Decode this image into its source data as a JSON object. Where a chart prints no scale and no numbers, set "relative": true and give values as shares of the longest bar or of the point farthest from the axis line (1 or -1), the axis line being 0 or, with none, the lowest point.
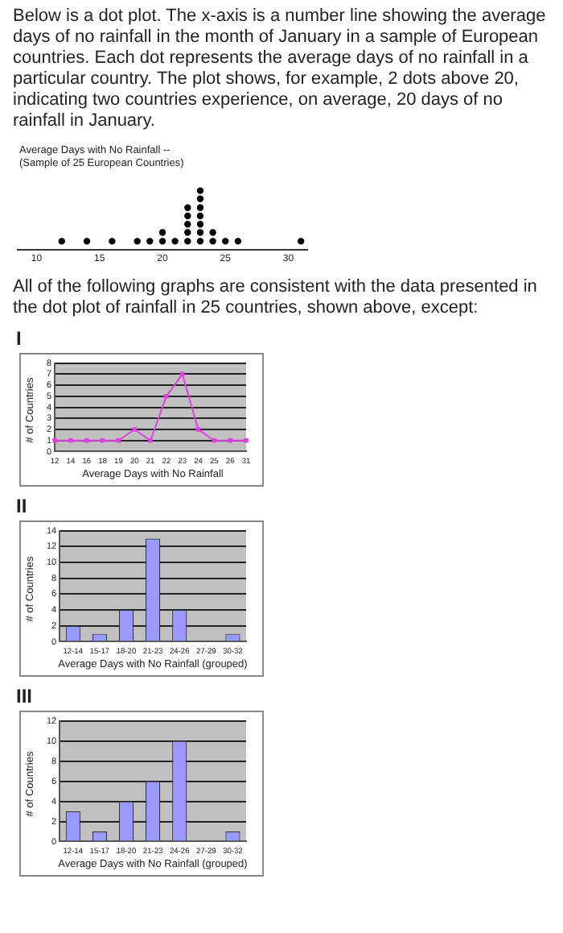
{
  "chart_data": [
    {
      "type": "scatter",
      "title": "Average Days with No Rainfall --",
      "subtitle": "(Sample of 25 European Countries)",
      "annotations": [
        "Below is a dot plot. The x-axis is a number line showing the average days of no rainfall in the month of January in a sample of European countries. Each dot represents the average days of no rainfall in a particular country. The plot shows, for example, 2 dots above 20, indicating two countries experience, on average, 20 days of no rainfall in January.",
        "All of the following graphs are consistent with the data presented in the dot plot of rainfall in 25 countries, shown above, except:"
      ],
      "x": [
        12,
        14,
        16,
        18,
        19,
        20,
        20,
        21,
        22,
        22,
        22,
        22,
        22,
        23,
        23,
        23,
        23,
        23,
        23,
        23,
        24,
        24,
        25,
        26,
        31
      ],
      "values": [
        0.14,
        0.14,
        0.14,
        0.14,
        0.14,
        0.14,
        0.29,
        0.14,
        0.14,
        0.29,
        0.43,
        0.57,
        0.71,
        0.14,
        0.29,
        0.43,
        0.57,
        0.71,
        0.86,
        1,
        0.14,
        0.29,
        0.14,
        0.14,
        0.14
      ],
      "relative": true,
      "color": "#000000",
      "marker": "circle",
      "xlim": [
        8.5,
        31.5
      ],
      "xticks": [
        10,
        15,
        20,
        25,
        30
      ],
      "legend": false
    },
    {
      "type": "line",
      "title": "I",
      "xlabel": "Average Days with No Rainfall",
      "ylabel": "# of Countries",
      "categories": [
        "12",
        "14",
        "16",
        "18",
        "19",
        "20",
        "21",
        "22",
        "23",
        "24",
        "25",
        "26",
        "31"
      ],
      "values": [
        1,
        1,
        1,
        1,
        1,
        2,
        1,
        5,
        7,
        2,
        1,
        1,
        1
      ],
      "color": "#e040e0",
      "marker": "square",
      "ylim": [
        0,
        8
      ],
      "yticks": [
        0,
        1,
        2,
        3,
        4,
        5,
        6,
        7,
        8
      ],
      "grid": "y",
      "legend": false
    },
    {
      "type": "bar",
      "title": "II",
      "xlabel": "Average Days with No Rainfall (grouped)",
      "ylabel": "# of Countries",
      "categories": [
        "12-14",
        "15-17",
        "18-20",
        "21-23",
        "24-26",
        "27-29",
        "30-32"
      ],
      "values": [
        2,
        1,
        4,
        13,
        4,
        0,
        1
      ],
      "color": "#9999ff",
      "ylim": [
        0,
        14
      ],
      "yticks": [
        0,
        2,
        4,
        6,
        8,
        10,
        12,
        14
      ],
      "grid": "y",
      "legend": false
    },
    {
      "type": "bar",
      "title": "III",
      "xlabel": "Average Days with No Rainfall (grouped)",
      "ylabel": "# of Countries",
      "categories": [
        "12-14",
        "15-17",
        "18-20",
        "21-23",
        "24-26",
        "27-29",
        "30-32"
      ],
      "values": [
        3,
        1,
        4,
        6,
        10,
        0,
        1
      ],
      "color": "#9999ff",
      "ylim": [
        0,
        12
      ],
      "yticks": [
        0,
        2,
        4,
        6,
        8,
        10,
        12
      ],
      "grid": "y",
      "legend": false
    }
  ]
}
